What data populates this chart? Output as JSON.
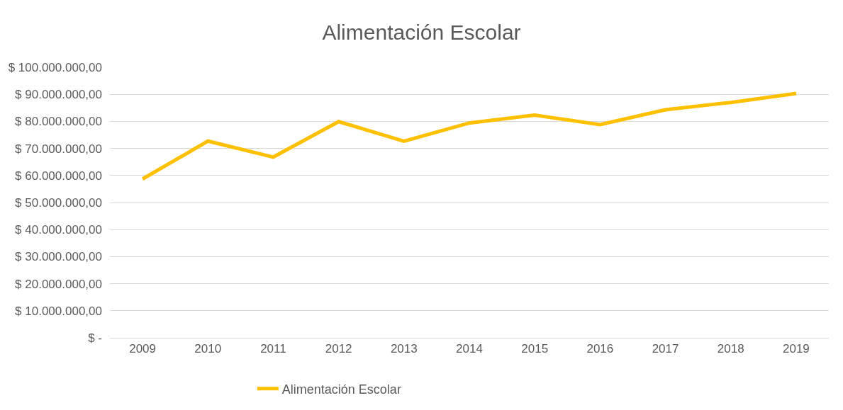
{
  "chart_data": {
    "type": "line",
    "title": "Alimentación Escolar",
    "categories": [
      "2009",
      "2010",
      "2011",
      "2012",
      "2013",
      "2014",
      "2015",
      "2016",
      "2017",
      "2018",
      "2019"
    ],
    "series": [
      {
        "name": "Alimentación Escolar",
        "color": "#ffc000",
        "values": [
          58700000,
          72700000,
          66800000,
          79900000,
          72700000,
          79400000,
          82300000,
          78800000,
          84300000,
          87000000,
          90300000
        ]
      }
    ],
    "ylim": [
      0,
      100000000
    ],
    "yticks": [
      {
        "value": 0,
        "label": "$ -"
      },
      {
        "value": 10000000,
        "label": "$ 10.000.000,00"
      },
      {
        "value": 20000000,
        "label": "$ 20.000.000,00"
      },
      {
        "value": 30000000,
        "label": "$ 30.000.000,00"
      },
      {
        "value": 40000000,
        "label": "$ 40.000.000,00"
      },
      {
        "value": 50000000,
        "label": "$ 50.000.000,00"
      },
      {
        "value": 60000000,
        "label": "$ 60.000.000,00"
      },
      {
        "value": 70000000,
        "label": "$ 70.000.000,00"
      },
      {
        "value": 80000000,
        "label": "$ 80.000.000,00"
      },
      {
        "value": 90000000,
        "label": "$ 90.000.000,00"
      },
      {
        "value": 100000000,
        "label": "$ 100.000.000,00"
      }
    ],
    "grid": "y",
    "legend": "bottom left",
    "marker": "none",
    "line_style": "solid"
  }
}
